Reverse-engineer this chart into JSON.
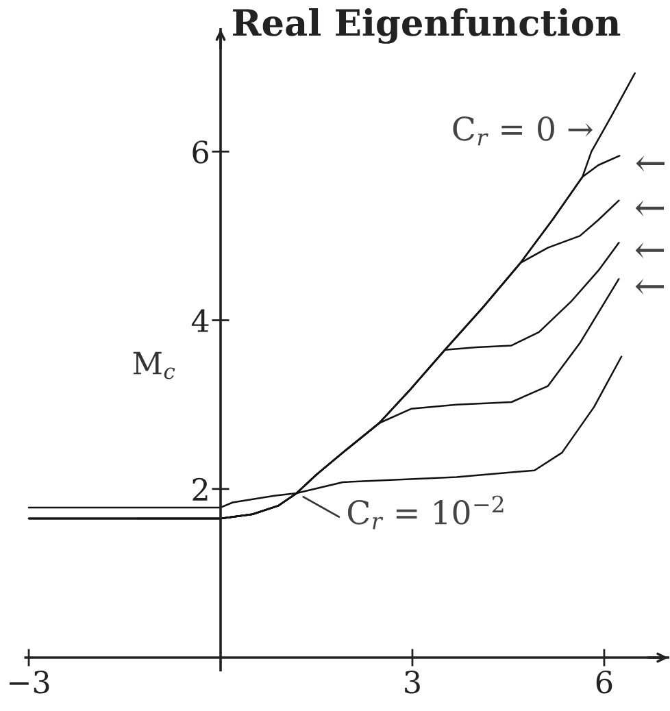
{
  "chart_data": {
    "type": "line",
    "title": "Real Eigenfunction",
    "ylabel": "M$_{c}$",
    "xlim": [
      -3.05,
      7
    ],
    "ylim": [
      -0.15,
      7.45
    ],
    "xticks": [
      -3,
      3,
      6
    ],
    "yticks": [
      2,
      4,
      6
    ],
    "line_style": "solid",
    "marker": "none",
    "series": [
      {
        "color": "#111111",
        "x": [
          -1.3,
          0,
          0.5,
          0.9,
          1.19,
          1.5,
          1.91,
          2.48,
          2.98,
          3.51,
          4.1,
          4.69,
          5.2,
          5.66,
          5.8,
          6.12,
          6.48
        ],
        "values": [
          1.65,
          1.65,
          1.7,
          1.8,
          1.95,
          2.17,
          2.43,
          2.78,
          3.19,
          3.65,
          4.15,
          4.68,
          5.2,
          5.7,
          6.0,
          6.43,
          6.93
        ]
      },
      {
        "color": "#111111",
        "x": [
          -3,
          0,
          0.5,
          0.9,
          1.19,
          1.5,
          1.91,
          2.48,
          2.98,
          3.51,
          4.1,
          4.69,
          5.2,
          5.66,
          5.91,
          6.24
        ],
        "values": [
          1.65,
          1.65,
          1.7,
          1.8,
          1.95,
          2.17,
          2.43,
          2.78,
          3.19,
          3.65,
          4.15,
          4.68,
          5.2,
          5.7,
          5.84,
          5.95
        ]
      },
      {
        "color": "#111111",
        "x": [
          -3,
          0,
          0.5,
          0.9,
          1.19,
          1.5,
          1.91,
          2.48,
          2.98,
          3.51,
          4.1,
          4.69,
          5.12,
          5.62,
          5.91,
          6.23
        ],
        "values": [
          1.65,
          1.65,
          1.7,
          1.8,
          1.95,
          2.17,
          2.43,
          2.78,
          3.19,
          3.65,
          4.15,
          4.68,
          4.86,
          5.0,
          5.19,
          5.42
        ]
      },
      {
        "color": "#111111",
        "x": [
          -3,
          0,
          0.5,
          0.9,
          1.19,
          1.5,
          1.91,
          2.48,
          2.98,
          3.51,
          4.0,
          4.55,
          4.98,
          5.48,
          5.91,
          6.23
        ],
        "values": [
          1.65,
          1.65,
          1.7,
          1.8,
          1.95,
          2.17,
          2.43,
          2.78,
          3.19,
          3.65,
          3.68,
          3.7,
          3.86,
          4.22,
          4.59,
          4.92
        ]
      },
      {
        "color": "#111111",
        "x": [
          -3,
          0,
          0.5,
          0.9,
          1.19,
          1.5,
          1.91,
          2.48,
          2.98,
          3.69,
          4.55,
          5.12,
          5.62,
          6.23
        ],
        "values": [
          1.65,
          1.65,
          1.7,
          1.8,
          1.95,
          2.17,
          2.43,
          2.78,
          2.95,
          3.0,
          3.03,
          3.22,
          3.73,
          4.49
        ]
      },
      {
        "color": "#111111",
        "x": [
          -3,
          0,
          0.19,
          0.84,
          1.19,
          1.91,
          3.69,
          4.91,
          5.34,
          5.84,
          6.27
        ],
        "values": [
          1.78,
          1.78,
          1.84,
          1.92,
          1.95,
          2.08,
          2.14,
          2.22,
          2.43,
          2.97,
          3.57
        ]
      }
    ],
    "annotations": [
      {
        "text": "C$_{r}$ = 0 →",
        "x": 5.9,
        "y": 6.1
      },
      {
        "text": "C$_{r}$ = 10$^{−2}$",
        "x": 1.19,
        "y": 1.95
      },
      {
        "text": "←",
        "x": 6.24,
        "y": 5.95
      },
      {
        "text": "←",
        "x": 6.23,
        "y": 5.42
      },
      {
        "text": "←",
        "x": 6.23,
        "y": 4.92
      },
      {
        "text": "←",
        "x": 6.23,
        "y": 4.49
      }
    ]
  }
}
